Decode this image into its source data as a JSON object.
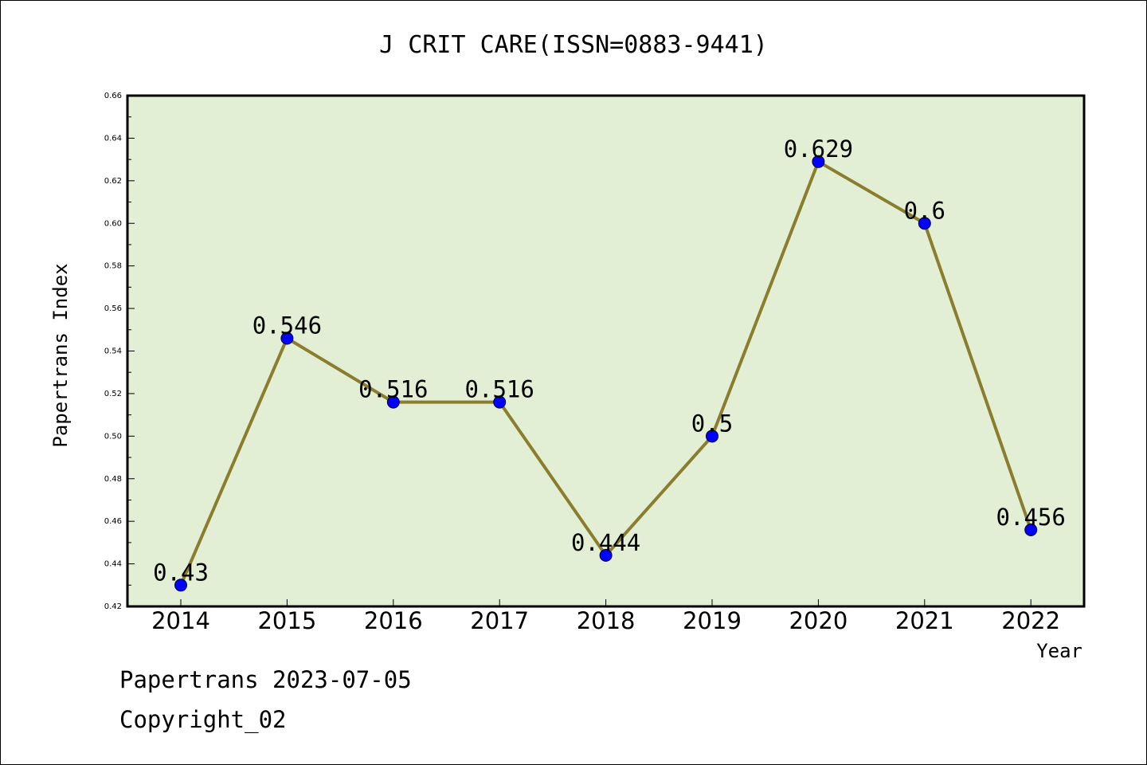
{
  "chart_data": {
    "type": "line",
    "title": "J CRIT CARE(ISSN=0883-9441)",
    "xlabel": "Year",
    "ylabel": "Papertrans Index",
    "categories": [
      "2014",
      "2015",
      "2016",
      "2017",
      "2018",
      "2019",
      "2020",
      "2021",
      "2022"
    ],
    "values": [
      0.43,
      0.546,
      0.516,
      0.516,
      0.444,
      0.5,
      0.629,
      0.6,
      0.456
    ],
    "value_labels": [
      "0.43",
      "0.546",
      "0.516",
      "0.516",
      "0.444",
      "0.5",
      "0.629",
      "0.6",
      "0.456"
    ],
    "ylim": [
      0.42,
      0.66
    ],
    "yticks": [
      "0.42",
      "0.44",
      "0.46",
      "0.48",
      "0.50",
      "0.52",
      "0.54",
      "0.56",
      "0.58",
      "0.60",
      "0.62",
      "0.64",
      "0.66"
    ],
    "grid": false,
    "colors": {
      "line": "#8b7d2e",
      "marker": "#0000ff",
      "plot_background": "#e2efd4"
    }
  },
  "footer": {
    "line1": "Papertrans 2023-07-05",
    "line2": "Copyright_02"
  }
}
